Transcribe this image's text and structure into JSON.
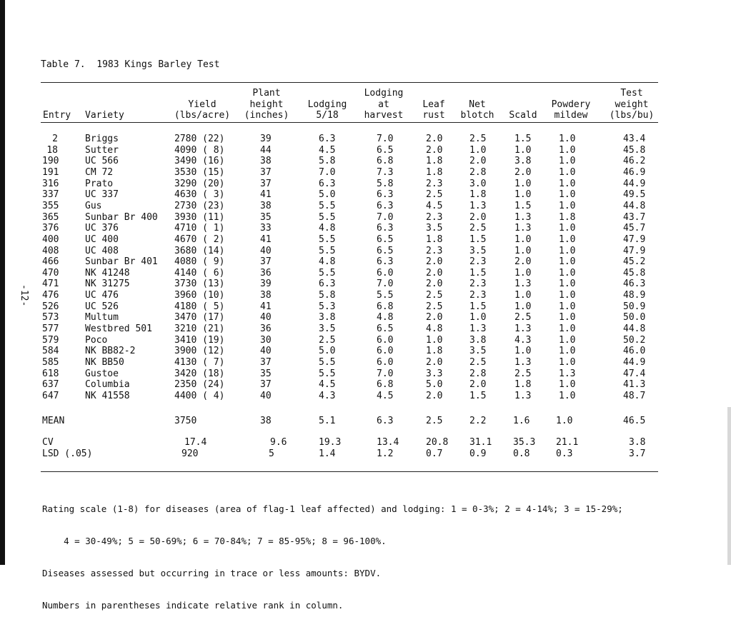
{
  "page_number": "-12-",
  "title": "Table 7.  1983 Kings Barley Test",
  "headers": [
    [
      "",
      "",
      "",
      "Plant",
      "",
      "Lodging",
      "",
      "",
      "",
      "",
      "Test"
    ],
    [
      "",
      "",
      "Yield",
      "height",
      "Lodging",
      "at",
      "Leaf",
      "Net",
      "",
      "Powdery",
      "weight"
    ],
    [
      "Entry",
      "Variety",
      "(lbs/acre)",
      "(inches)",
      "5/18",
      "harvest",
      "rust",
      "blotch",
      "Scald",
      "mildew",
      "(lbs/bu)"
    ]
  ],
  "rows": [
    [
      "2",
      "Briggs",
      "2780 (22)",
      "39",
      "6.3",
      "7.0",
      "2.0",
      "2.5",
      "1.5",
      "1.0",
      "43.4"
    ],
    [
      "18",
      "Sutter",
      "4090 ( 8)",
      "44",
      "4.5",
      "6.5",
      "2.0",
      "1.0",
      "1.0",
      "1.0",
      "45.8"
    ],
    [
      "190",
      "UC 566",
      "3490 (16)",
      "38",
      "5.8",
      "6.8",
      "1.8",
      "2.0",
      "3.8",
      "1.0",
      "46.2"
    ],
    [
      "191",
      "CM 72",
      "3530 (15)",
      "37",
      "7.0",
      "7.3",
      "1.8",
      "2.8",
      "2.0",
      "1.0",
      "46.9"
    ],
    [
      "316",
      "Prato",
      "3290 (20)",
      "37",
      "6.3",
      "5.8",
      "2.3",
      "3.0",
      "1.0",
      "1.0",
      "44.9"
    ],
    [
      "337",
      "UC 337",
      "4630 ( 3)",
      "41",
      "5.0",
      "6.3",
      "2.5",
      "1.8",
      "1.0",
      "1.0",
      "49.5"
    ],
    [
      "355",
      "Gus",
      "2730 (23)",
      "38",
      "5.5",
      "6.3",
      "4.5",
      "1.3",
      "1.5",
      "1.0",
      "44.8"
    ],
    [
      "365",
      "Sunbar Br 400",
      "3930 (11)",
      "35",
      "5.5",
      "7.0",
      "2.3",
      "2.0",
      "1.3",
      "1.8",
      "43.7"
    ],
    [
      "376",
      "UC 376",
      "4710 ( 1)",
      "33",
      "4.8",
      "6.3",
      "3.5",
      "2.5",
      "1.3",
      "1.0",
      "45.7"
    ],
    [
      "400",
      "UC 400",
      "4670 ( 2)",
      "41",
      "5.5",
      "6.5",
      "1.8",
      "1.5",
      "1.0",
      "1.0",
      "47.9"
    ],
    [
      "408",
      "UC 408",
      "3680 (14)",
      "40",
      "5.5",
      "6.5",
      "2.3",
      "3.5",
      "1.0",
      "1.0",
      "47.9"
    ],
    [
      "466",
      "Sunbar Br 401",
      "4080 ( 9)",
      "37",
      "4.8",
      "6.3",
      "2.0",
      "2.3",
      "2.0",
      "1.0",
      "45.2"
    ],
    [
      "470",
      "NK 41248",
      "4140 ( 6)",
      "36",
      "5.5",
      "6.0",
      "2.0",
      "1.5",
      "1.0",
      "1.0",
      "45.8"
    ],
    [
      "471",
      "NK 31275",
      "3730 (13)",
      "39",
      "6.3",
      "7.0",
      "2.0",
      "2.3",
      "1.3",
      "1.0",
      "46.3"
    ],
    [
      "476",
      "UC 476",
      "3960 (10)",
      "38",
      "5.8",
      "5.5",
      "2.5",
      "2.3",
      "1.0",
      "1.0",
      "48.9"
    ],
    [
      "526",
      "UC 526",
      "4180 ( 5)",
      "41",
      "5.3",
      "6.8",
      "2.5",
      "1.5",
      "1.0",
      "1.0",
      "50.9"
    ],
    [
      "573",
      "Multum",
      "3470 (17)",
      "40",
      "3.8",
      "4.8",
      "2.0",
      "1.0",
      "2.5",
      "1.0",
      "50.0"
    ],
    [
      "577",
      "Westbred 501",
      "3210 (21)",
      "36",
      "3.5",
      "6.5",
      "4.8",
      "1.3",
      "1.3",
      "1.0",
      "44.8"
    ],
    [
      "579",
      "Poco",
      "3410 (19)",
      "30",
      "2.5",
      "6.0",
      "1.0",
      "3.8",
      "4.3",
      "1.0",
      "50.2"
    ],
    [
      "584",
      "NK BB82-2",
      "3900 (12)",
      "40",
      "5.0",
      "6.0",
      "1.8",
      "3.5",
      "1.0",
      "1.0",
      "46.0"
    ],
    [
      "585",
      "NK BB50",
      "4130 ( 7)",
      "37",
      "5.5",
      "6.0",
      "2.0",
      "2.5",
      "1.3",
      "1.0",
      "44.9"
    ],
    [
      "618",
      "Gustoe",
      "3420 (18)",
      "35",
      "5.5",
      "7.0",
      "3.3",
      "2.8",
      "2.5",
      "1.3",
      "47.4"
    ],
    [
      "637",
      "Columbia",
      "2350 (24)",
      "37",
      "4.5",
      "6.8",
      "5.0",
      "2.0",
      "1.8",
      "1.0",
      "41.3"
    ],
    [
      "647",
      "NK 41558",
      "4400 ( 4)",
      "40",
      "4.3",
      "4.5",
      "2.0",
      "1.5",
      "1.3",
      "1.0",
      "48.7"
    ]
  ],
  "mean": [
    "MEAN",
    "",
    "3750",
    "38",
    "5.1",
    "6.3",
    "2.5",
    "2.2",
    "1.6",
    "1.0",
    "46.5"
  ],
  "cv": [
    "CV",
    "",
    "17.4",
    "9.6",
    "19.3",
    "13.4",
    "20.8",
    "31.1",
    "35.3",
    "21.1",
    "3.8"
  ],
  "lsd": [
    "LSD (.05)",
    "",
    "920",
    "5",
    "1.4",
    "1.2",
    "0.7",
    "0.9",
    "0.8",
    "0.3",
    "3.7"
  ],
  "footnotes": [
    "Rating scale (1-8) for diseases (area of flag-1 leaf affected) and lodging: 1 = 0-3%; 2 = 4-14%; 3 = 15-29%;",
    "    4 = 30-49%; 5 = 50-69%; 6 = 70-84%; 7 = 85-95%; 8 = 96-100%.",
    "Diseases assessed but occurring in trace or less amounts: BYDV.",
    "Numbers in parentheses indicate relative rank in column."
  ]
}
